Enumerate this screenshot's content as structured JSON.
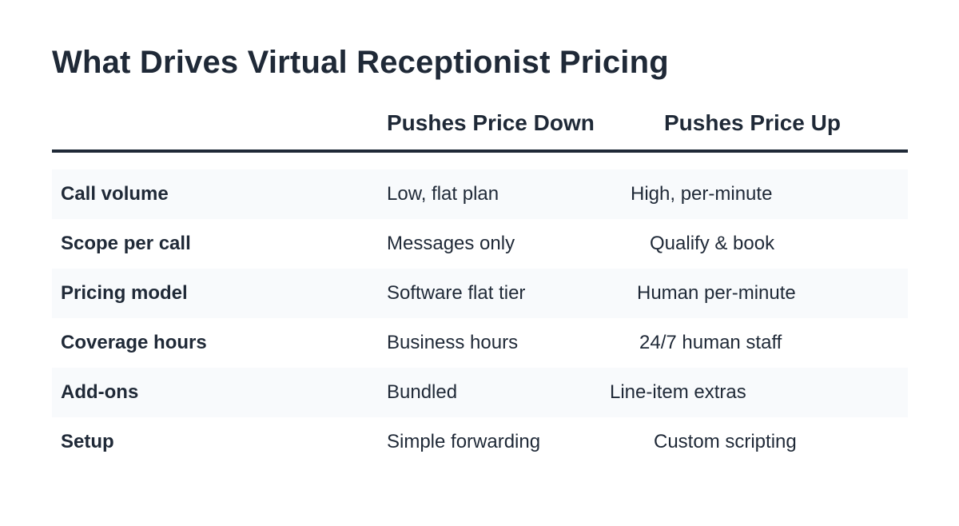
{
  "title": "What Drives Virtual Receptionist Pricing",
  "columns": {
    "factor": "",
    "down": "Pushes Price Down",
    "up": "Pushes Price Up"
  },
  "rows": [
    {
      "factor": "Call volume",
      "down": "Low, flat plan",
      "up": "High, per-minute"
    },
    {
      "factor": "Scope per call",
      "down": "Messages only",
      "up": "Qualify & book"
    },
    {
      "factor": "Pricing model",
      "down": "Software flat tier",
      "up": "Human per-minute"
    },
    {
      "factor": "Coverage hours",
      "down": "Business hours",
      "up": "24/7 human staff"
    },
    {
      "factor": "Add-ons",
      "down": "Bundled",
      "up": "Line-item extras"
    },
    {
      "factor": "Setup",
      "down": "Simple forwarding",
      "up": "Custom scripting"
    }
  ],
  "colors": {
    "text": "#1f2937",
    "row_shade": "#f8fafc",
    "rule": "#1f2937"
  }
}
